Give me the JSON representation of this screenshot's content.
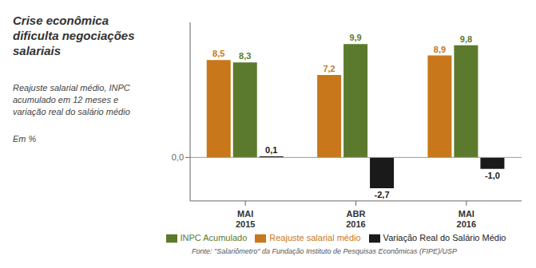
{
  "chart_data": {
    "type": "bar",
    "title": "Crise econômica\ndificulta negociações\nsalariais",
    "subtitle": "Reajuste salarial médio, INPC\nacumulado em 12 meses e\nvariação real do salário médio",
    "ylabel": "Em %",
    "annotations": [
      "Fonte: \"Salariômetro\" da Fundação Instituto de Pesquisas Econômicas (FIPE)/USP"
    ],
    "categories": [
      "MAI\n2015",
      "ABR\n2016",
      "MAI\n2016"
    ],
    "series": [
      {
        "name": "Reajuste salarial médio",
        "color": "#C8781A",
        "values": [
          8.5,
          7.2,
          8.9
        ],
        "value_labels": [
          "8,5",
          "7,2",
          "8,9"
        ]
      },
      {
        "name": "INPC Acumulado",
        "color": "#5B7A2E",
        "values": [
          8.3,
          9.9,
          9.8
        ],
        "value_labels": [
          "8,3",
          "9,9",
          "9,8"
        ]
      },
      {
        "name": "Variação Real do Salário Médio",
        "color": "#1A1A1A",
        "values": [
          0.1,
          -2.7,
          -1.0
        ],
        "value_labels": [
          "0,1",
          "-2,7",
          "-1,0"
        ]
      }
    ],
    "ylim": [
      -3.8,
      11.8
    ],
    "yticks": [
      {
        "value": 0,
        "label": "0,0"
      }
    ],
    "grid": false,
    "data_labels": true,
    "legend": "bottom"
  }
}
